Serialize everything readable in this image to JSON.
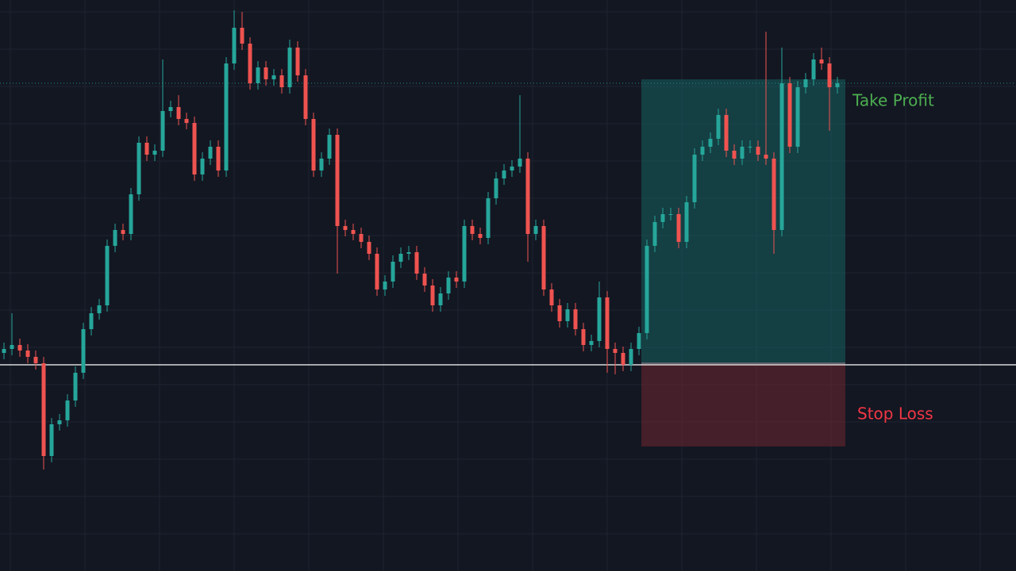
{
  "chart_data": {
    "type": "candlestick",
    "ylim": [
      0,
      720
    ],
    "up_color": "#26a69a",
    "down_color": "#ef5350",
    "open": [
      275,
      280,
      285,
      278,
      270,
      262,
      145,
      185,
      190,
      215,
      250,
      305,
      325,
      335,
      410,
      430,
      425,
      475,
      540,
      525,
      530,
      580,
      585,
      570,
      565,
      500,
      520,
      535,
      505,
      640,
      685,
      665,
      615,
      635,
      620,
      625,
      610,
      660,
      625,
      570,
      505,
      520,
      550,
      435,
      430,
      425,
      415,
      400,
      355,
      365,
      390,
      400,
      402,
      375,
      360,
      335,
      350,
      370,
      365,
      435,
      425,
      420,
      470,
      495,
      505,
      510,
      520,
      425,
      435,
      355,
      335,
      315,
      330,
      305,
      285,
      290,
      345,
      280,
      275,
      260,
      280,
      300,
      410,
      440,
      450,
      450,
      415,
      465,
      525,
      535,
      545,
      575,
      530,
      520,
      535,
      535,
      525,
      520,
      430,
      615,
      535,
      610,
      620,
      645,
      640,
      610
    ],
    "high": [
      288,
      325,
      293,
      286,
      278,
      270,
      193,
      198,
      223,
      258,
      313,
      333,
      343,
      418,
      438,
      438,
      483,
      548,
      548,
      538,
      645,
      593,
      600,
      578,
      573,
      528,
      543,
      543,
      648,
      707,
      705,
      673,
      643,
      643,
      633,
      633,
      670,
      668,
      633,
      578,
      528,
      558,
      558,
      443,
      438,
      433,
      423,
      408,
      373,
      398,
      408,
      410,
      410,
      383,
      368,
      358,
      378,
      378,
      443,
      443,
      433,
      478,
      503,
      513,
      518,
      600,
      528,
      443,
      443,
      363,
      343,
      338,
      338,
      313,
      298,
      365,
      353,
      288,
      283,
      288,
      308,
      418,
      448,
      458,
      458,
      458,
      473,
      533,
      543,
      553,
      583,
      583,
      538,
      543,
      543,
      543,
      680,
      528,
      660,
      623,
      618,
      628,
      653,
      660,
      648,
      623
    ],
    "low": [
      267,
      272,
      270,
      262,
      254,
      128,
      137,
      177,
      182,
      207,
      242,
      297,
      317,
      327,
      402,
      417,
      417,
      467,
      517,
      517,
      522,
      572,
      562,
      557,
      492,
      492,
      512,
      497,
      497,
      632,
      657,
      607,
      607,
      612,
      612,
      602,
      602,
      617,
      562,
      497,
      497,
      512,
      375,
      422,
      417,
      407,
      392,
      347,
      347,
      357,
      382,
      392,
      367,
      352,
      327,
      327,
      342,
      357,
      357,
      417,
      412,
      412,
      462,
      487,
      497,
      502,
      390,
      417,
      347,
      327,
      307,
      307,
      297,
      277,
      277,
      282,
      250,
      248,
      252,
      252,
      272,
      292,
      402,
      432,
      442,
      407,
      407,
      457,
      517,
      527,
      537,
      522,
      512,
      512,
      527,
      517,
      512,
      400,
      422,
      527,
      527,
      602,
      612,
      632,
      555,
      602
    ],
    "close": [
      280,
      285,
      278,
      270,
      262,
      145,
      185,
      190,
      215,
      250,
      305,
      325,
      335,
      410,
      430,
      425,
      475,
      540,
      525,
      530,
      580,
      585,
      570,
      565,
      500,
      520,
      535,
      505,
      640,
      685,
      665,
      615,
      635,
      620,
      625,
      610,
      660,
      625,
      570,
      505,
      520,
      550,
      435,
      430,
      425,
      415,
      400,
      355,
      365,
      390,
      400,
      402,
      375,
      360,
      335,
      350,
      370,
      365,
      435,
      425,
      420,
      470,
      495,
      505,
      510,
      520,
      425,
      435,
      355,
      335,
      315,
      330,
      305,
      285,
      290,
      345,
      280,
      275,
      260,
      280,
      300,
      410,
      440,
      450,
      450,
      415,
      465,
      525,
      535,
      545,
      575,
      530,
      520,
      535,
      535,
      525,
      520,
      430,
      615,
      535,
      610,
      620,
      645,
      640,
      610,
      615
    ],
    "last_price": 615,
    "horizontal_line": 260,
    "position": {
      "take_profit": 620,
      "entry": 262,
      "stop_loss": 157,
      "take_profit_label": "Take Profit",
      "stop_loss_label": "Stop Loss",
      "take_profit_color": "#4caf50",
      "stop_loss_color": "#f23645"
    }
  }
}
